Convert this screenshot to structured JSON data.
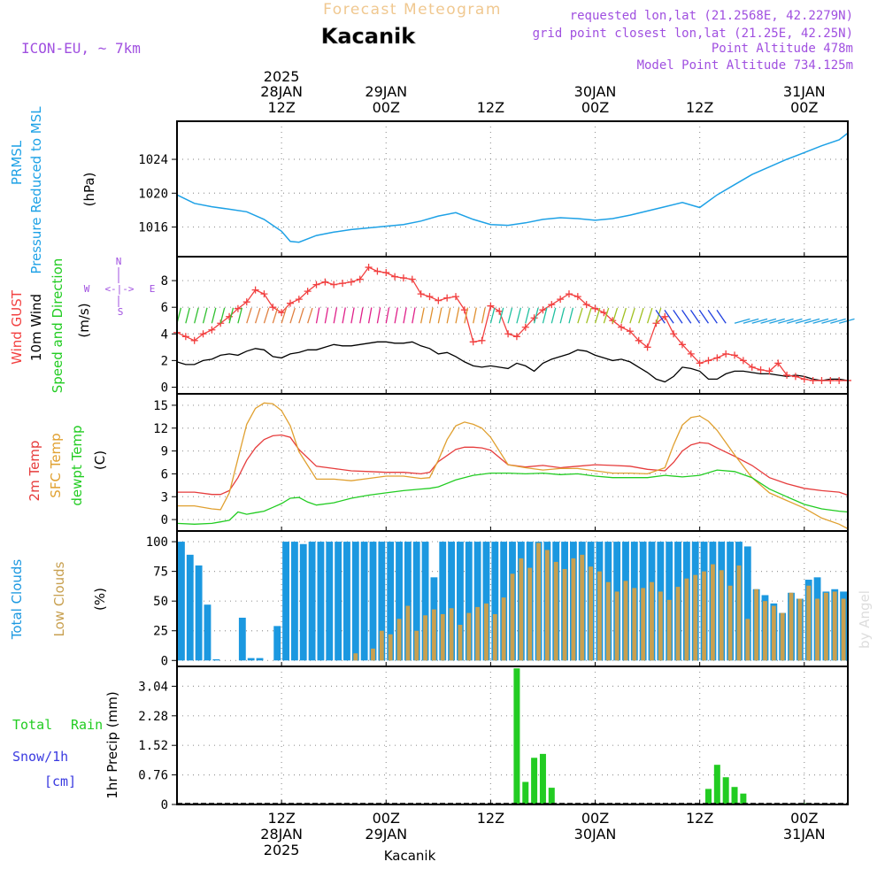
{
  "header": {
    "banner": "Forecast Meteogram",
    "station": "Kacanik",
    "model": "ICON-EU, ~ 7km",
    "requested": "requested lon,lat (21.2568E, 42.2279N)",
    "grid_point": "grid point closest lon,lat (21.25E, 42.25N)",
    "point_altitude": "Point Altitude 478m",
    "model_altitude": "Model Point Altitude 734.125m",
    "watermark": "by Angel",
    "footer_station": "Kacanik"
  },
  "time_axis": {
    "year": "2025",
    "ticks": [
      {
        "hour": 12,
        "time": "12Z",
        "date": "28JAN",
        "year": "2025"
      },
      {
        "hour": 24,
        "time": "00Z",
        "date": "29JAN"
      },
      {
        "hour": 36,
        "time": "12Z",
        "date": ""
      },
      {
        "hour": 48,
        "time": "00Z",
        "date": "30JAN"
      },
      {
        "hour": 60,
        "time": "12Z",
        "date": ""
      },
      {
        "hour": 72,
        "time": "00Z",
        "date": "31JAN"
      }
    ],
    "start_hour": 0,
    "end_hour": 77
  },
  "colors": {
    "pressure": "#1da1e6",
    "gust": "#f24040",
    "wind10m": "#000000",
    "t2m": "#e63c3c",
    "tsfc": "#e0a030",
    "dewpt": "#22cc22",
    "total_clouds": "#1b98e0",
    "low_clouds": "#c8a050",
    "rain": "#22cc22",
    "snow": "#3a3ae0",
    "compass": "#a050e0",
    "banner": "#f0c890",
    "info": "#a050e0"
  },
  "chart_data": [
    {
      "id": "pressure",
      "type": "line",
      "title": "PRMSL Pressure Reduced to MSL",
      "label_lines": [
        "PRMSL",
        "Pressure Reduced to MSL"
      ],
      "ylabel": "(hPa)",
      "ylim": [
        1012.5,
        1028.5
      ],
      "yticks": [
        "1016",
        "1020",
        "1024"
      ],
      "x": [
        0,
        2,
        4,
        6,
        8,
        10,
        12,
        13,
        14,
        16,
        18,
        20,
        22,
        24,
        26,
        28,
        30,
        32,
        34,
        36,
        38,
        40,
        42,
        44,
        46,
        48,
        50,
        52,
        54,
        56,
        58,
        60,
        62,
        64,
        66,
        68,
        70,
        72,
        74,
        76,
        77
      ],
      "values": [
        1019.8,
        1018.8,
        1018.4,
        1018.1,
        1017.8,
        1016.9,
        1015.5,
        1014.3,
        1014.2,
        1015.0,
        1015.4,
        1015.7,
        1015.9,
        1016.1,
        1016.3,
        1016.7,
        1017.3,
        1017.7,
        1016.9,
        1016.3,
        1016.2,
        1016.5,
        1016.9,
        1017.1,
        1017.0,
        1016.8,
        1017.0,
        1017.4,
        1017.9,
        1018.4,
        1018.9,
        1018.3,
        1019.8,
        1021.0,
        1022.2,
        1023.1,
        1024.0,
        1024.8,
        1025.6,
        1026.3,
        1027.1
      ]
    },
    {
      "id": "wind",
      "type": "line",
      "title": "Wind GUST / 10m Wind Speed and Direction",
      "ylabel": "(m/s)",
      "ylim": [
        -0.5,
        9.8
      ],
      "yticks": [
        "0",
        "2",
        "4",
        "6",
        "8"
      ],
      "compass": {
        "n": "N",
        "s": "S",
        "w": "W",
        "e": "E",
        "arrow": "<-|->"
      },
      "series": [
        {
          "name": "Wind GUST",
          "x": [
            0,
            1,
            2,
            3,
            4,
            5,
            6,
            7,
            8,
            9,
            10,
            11,
            12,
            13,
            14,
            15,
            16,
            17,
            18,
            19,
            20,
            21,
            22,
            23,
            24,
            25,
            26,
            27,
            28,
            29,
            30,
            31,
            32,
            33,
            34,
            35,
            36,
            37,
            38,
            39,
            40,
            41,
            42,
            43,
            44,
            45,
            46,
            47,
            48,
            49,
            50,
            51,
            52,
            53,
            54,
            55,
            56,
            57,
            58,
            59,
            60,
            61,
            62,
            63,
            64,
            65,
            66,
            67,
            68,
            69,
            70,
            71,
            72,
            73,
            74,
            75,
            76,
            77
          ],
          "values": [
            4.1,
            3.8,
            3.5,
            4.0,
            4.3,
            4.8,
            5.3,
            5.9,
            6.4,
            7.3,
            7.0,
            6.0,
            5.6,
            6.3,
            6.6,
            7.2,
            7.7,
            7.9,
            7.7,
            7.8,
            7.9,
            8.1,
            9.0,
            8.7,
            8.6,
            8.3,
            8.2,
            8.1,
            7.0,
            6.8,
            6.5,
            6.7,
            6.8,
            5.8,
            3.4,
            3.5,
            6.1,
            5.7,
            4.0,
            3.8,
            4.5,
            5.2,
            5.8,
            6.2,
            6.6,
            7.0,
            6.8,
            6.2,
            5.9,
            5.6,
            5.0,
            4.5,
            4.2,
            3.5,
            3.0,
            4.8,
            5.3,
            4.0,
            3.2,
            2.5,
            1.8,
            2.0,
            2.2,
            2.5,
            2.4,
            2.0,
            1.5,
            1.3,
            1.2,
            1.8,
            0.9,
            0.8,
            0.6,
            0.5,
            0.5,
            0.5,
            0.5,
            0.5
          ]
        },
        {
          "name": "10m Wind",
          "x": [
            0,
            1,
            2,
            3,
            4,
            5,
            6,
            7,
            8,
            9,
            10,
            11,
            12,
            13,
            14,
            15,
            16,
            17,
            18,
            19,
            20,
            21,
            22,
            23,
            24,
            25,
            26,
            27,
            28,
            29,
            30,
            31,
            32,
            33,
            34,
            35,
            36,
            37,
            38,
            39,
            40,
            41,
            42,
            43,
            44,
            45,
            46,
            47,
            48,
            49,
            50,
            51,
            52,
            53,
            54,
            55,
            56,
            57,
            58,
            59,
            60,
            61,
            62,
            63,
            64,
            65,
            66,
            67,
            68,
            69,
            70,
            71,
            72,
            73,
            74,
            75,
            76,
            77
          ],
          "values": [
            1.9,
            1.7,
            1.7,
            2.0,
            2.1,
            2.4,
            2.5,
            2.4,
            2.7,
            2.9,
            2.8,
            2.3,
            2.2,
            2.5,
            2.6,
            2.8,
            2.8,
            3.0,
            3.2,
            3.1,
            3.1,
            3.2,
            3.3,
            3.4,
            3.4,
            3.3,
            3.3,
            3.4,
            3.1,
            2.9,
            2.5,
            2.6,
            2.3,
            1.9,
            1.6,
            1.5,
            1.6,
            1.5,
            1.4,
            1.8,
            1.6,
            1.2,
            1.8,
            2.1,
            2.3,
            2.5,
            2.8,
            2.7,
            2.4,
            2.2,
            2.0,
            2.1,
            1.9,
            1.5,
            1.1,
            0.6,
            0.4,
            0.8,
            1.5,
            1.4,
            1.2,
            0.6,
            0.6,
            1.0,
            1.2,
            1.2,
            1.1,
            1.0,
            1.0,
            0.9,
            0.8,
            0.9,
            0.8,
            0.6,
            0.5,
            0.6,
            0.6,
            0.5
          ]
        }
      ]
    },
    {
      "id": "temperature",
      "type": "line",
      "title": "2m Temp / SFC Temp / dewpt Temp",
      "ylabel": "(C)",
      "ylim": [
        -1.5,
        16.5
      ],
      "yticks": [
        "0",
        "3",
        "6",
        "9",
        "12",
        "15"
      ],
      "series": [
        {
          "name": "2m Temp",
          "x": [
            0,
            2,
            4,
            5,
            6,
            7,
            8,
            9,
            10,
            11,
            12,
            13,
            14,
            16,
            18,
            20,
            22,
            24,
            26,
            28,
            29,
            30,
            32,
            33,
            34,
            35,
            36,
            38,
            40,
            42,
            44,
            46,
            48,
            50,
            52,
            54,
            56,
            57,
            58,
            59,
            60,
            61,
            62,
            64,
            66,
            68,
            70,
            72,
            74,
            76,
            77
          ],
          "values": [
            3.6,
            3.6,
            3.3,
            3.3,
            3.8,
            5.5,
            7.8,
            9.4,
            10.5,
            11.0,
            11.1,
            10.8,
            9.2,
            7.0,
            6.7,
            6.4,
            6.3,
            6.2,
            6.2,
            6.0,
            6.2,
            7.6,
            9.2,
            9.5,
            9.5,
            9.4,
            9.1,
            7.2,
            6.9,
            7.1,
            6.8,
            7.0,
            7.2,
            7.1,
            7.0,
            6.6,
            6.4,
            7.5,
            9.0,
            9.8,
            10.1,
            10.0,
            9.4,
            8.3,
            7.1,
            5.5,
            4.7,
            4.1,
            3.8,
            3.6,
            3.2
          ]
        },
        {
          "name": "SFC Temp",
          "x": [
            0,
            2,
            4,
            5,
            6,
            7,
            8,
            9,
            10,
            11,
            12,
            13,
            14,
            16,
            18,
            20,
            22,
            24,
            26,
            28,
            29,
            30,
            31,
            32,
            33,
            34,
            35,
            36,
            38,
            40,
            42,
            44,
            46,
            48,
            50,
            52,
            54,
            56,
            57,
            58,
            59,
            60,
            61,
            62,
            64,
            66,
            68,
            70,
            72,
            74,
            76,
            77
          ],
          "values": [
            1.8,
            1.8,
            1.4,
            1.3,
            3.5,
            8.0,
            12.5,
            14.6,
            15.3,
            15.2,
            14.3,
            12.3,
            8.9,
            5.3,
            5.3,
            5.1,
            5.4,
            5.7,
            5.7,
            5.4,
            5.5,
            7.8,
            10.5,
            12.3,
            12.8,
            12.5,
            12.0,
            10.8,
            7.2,
            6.8,
            6.5,
            6.7,
            6.7,
            6.4,
            6.1,
            6.1,
            6.0,
            6.8,
            9.8,
            12.4,
            13.4,
            13.6,
            12.9,
            11.7,
            8.5,
            5.5,
            3.5,
            2.5,
            1.5,
            0.2,
            -0.6,
            -1.2
          ]
        },
        {
          "name": "dewpt Temp",
          "x": [
            0,
            2,
            4,
            5,
            6,
            7,
            8,
            9,
            10,
            11,
            12,
            13,
            14,
            15,
            16,
            18,
            20,
            22,
            24,
            26,
            28,
            29,
            30,
            32,
            34,
            36,
            38,
            40,
            42,
            44,
            46,
            48,
            50,
            52,
            54,
            56,
            58,
            60,
            62,
            64,
            66,
            68,
            70,
            72,
            74,
            76,
            77
          ],
          "values": [
            -0.5,
            -0.6,
            -0.5,
            -0.3,
            -0.1,
            1.0,
            0.7,
            0.9,
            1.1,
            1.6,
            2.1,
            2.8,
            2.9,
            2.3,
            1.9,
            2.2,
            2.8,
            3.2,
            3.5,
            3.8,
            4.0,
            4.1,
            4.3,
            5.2,
            5.8,
            6.1,
            6.1,
            6.0,
            6.1,
            5.9,
            6.0,
            5.7,
            5.5,
            5.5,
            5.5,
            5.8,
            5.6,
            5.8,
            6.5,
            6.3,
            5.5,
            4.0,
            3.0,
            2.0,
            1.4,
            1.1,
            1.0
          ]
        }
      ]
    },
    {
      "id": "clouds",
      "type": "bar",
      "title": "Total Clouds / Low Clouds",
      "ylabel": "(%)",
      "ylim": [
        -5,
        109
      ],
      "yticks": [
        "0",
        "25",
        "50",
        "75",
        "100"
      ],
      "series": [
        {
          "name": "Total Clouds",
          "values": [
            100,
            89,
            80,
            47,
            1,
            0,
            0,
            36,
            2,
            2,
            0,
            29,
            100,
            100,
            98,
            100,
            100,
            100,
            100,
            100,
            100,
            100,
            100,
            100,
            100,
            100,
            100,
            100,
            100,
            70,
            100,
            100,
            100,
            100,
            100,
            100,
            100,
            100,
            100,
            100,
            100,
            100,
            100,
            100,
            100,
            100,
            100,
            100,
            100,
            100,
            100,
            100,
            100,
            100,
            100,
            100,
            100,
            100,
            100,
            100,
            100,
            100,
            100,
            100,
            100,
            96,
            60,
            55,
            48,
            40,
            57,
            52,
            68,
            70,
            58,
            60,
            58
          ]
        },
        {
          "name": "Low Clouds",
          "values": [
            0,
            0,
            0,
            0,
            0,
            0,
            0,
            0,
            0,
            0,
            0,
            0,
            0,
            0,
            0,
            0,
            0,
            0,
            0,
            0,
            6,
            0,
            10,
            25,
            22,
            35,
            46,
            25,
            38,
            43,
            39,
            44,
            30,
            40,
            45,
            48,
            39,
            53,
            73,
            86,
            78,
            99,
            93,
            83,
            77,
            86,
            89,
            79,
            75,
            66,
            58,
            67,
            61,
            61,
            66,
            58,
            51,
            62,
            69,
            72,
            75,
            81,
            76,
            63,
            80,
            35,
            60,
            50,
            46,
            40,
            57,
            52,
            63,
            52,
            57,
            58,
            52
          ]
        },
        {
          "name": "Rain",
          "values": [
            0,
            0,
            0,
            0,
            0,
            0,
            0,
            0,
            0,
            0,
            0,
            0,
            0,
            0,
            0,
            0,
            0,
            0,
            0,
            0,
            0,
            0,
            0,
            0,
            0,
            0,
            0,
            0,
            0,
            0,
            0,
            0,
            0,
            0,
            0,
            0,
            0,
            0,
            0,
            0,
            0,
            0,
            0,
            0,
            0,
            0,
            0,
            0,
            0,
            0,
            0,
            0,
            0,
            0,
            0,
            0,
            0,
            0,
            0,
            0,
            0,
            0,
            0,
            0,
            0,
            0,
            0,
            0,
            0,
            0,
            0,
            0,
            0,
            0,
            0,
            0,
            0
          ]
        }
      ]
    },
    {
      "id": "precip",
      "type": "bar",
      "title": "1hr Precip (mm)",
      "ylabel": "1hr Precip (mm)",
      "ylim": [
        0,
        3.55
      ],
      "yticks": [
        "0",
        "0.76",
        "1.52",
        "2.28",
        "3.04"
      ],
      "legend": {
        "rain_a": "Total",
        "rain_b": "Rain",
        "snow": "Snow/1h",
        "unit": "[cm]"
      },
      "series": [
        {
          "name": "Rain",
          "x": [
            39,
            40,
            41,
            42,
            43,
            61,
            62,
            63,
            64,
            65,
            72
          ],
          "values": [
            3.5,
            0.58,
            1.2,
            1.3,
            0.43,
            0.4,
            1.02,
            0.7,
            0.45,
            0.28,
            0.03
          ]
        }
      ]
    }
  ]
}
